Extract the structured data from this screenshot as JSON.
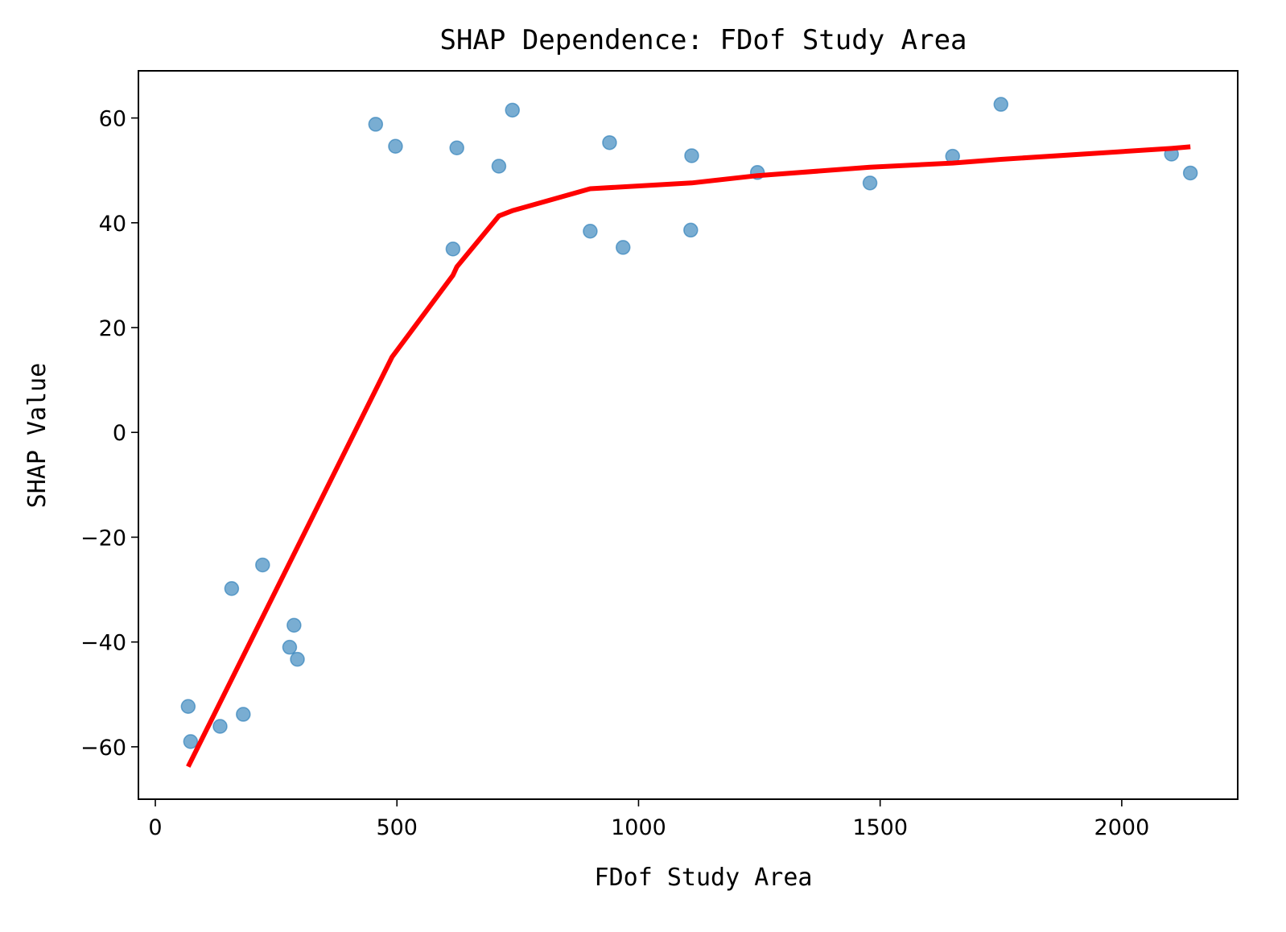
{
  "chart_data": {
    "type": "scatter",
    "title": "SHAP Dependence: FDof Study Area",
    "xlabel": "FDof Study Area",
    "ylabel": "SHAP Value",
    "xlim": [
      -35,
      2240
    ],
    "ylim": [
      -70,
      69
    ],
    "xticks": [
      0,
      500,
      1000,
      1500,
      2000
    ],
    "yticks": [
      -60,
      -40,
      -20,
      0,
      20,
      40,
      60
    ],
    "xtick_labels": [
      "0",
      "500",
      "1000",
      "1500",
      "2000"
    ],
    "ytick_labels": [
      "−60",
      "−40",
      "−20",
      "0",
      "20",
      "40",
      "60"
    ],
    "grid": false,
    "series": [
      {
        "kind": "scatter",
        "color": "#1f77b4",
        "points": [
          {
            "x": 68,
            "y": -52.3
          },
          {
            "x": 73,
            "y": -59.0
          },
          {
            "x": 134,
            "y": -56.1
          },
          {
            "x": 158,
            "y": -29.8
          },
          {
            "x": 182,
            "y": -53.8
          },
          {
            "x": 222,
            "y": -25.3
          },
          {
            "x": 278,
            "y": -41.0
          },
          {
            "x": 287,
            "y": -36.8
          },
          {
            "x": 294,
            "y": -43.3
          },
          {
            "x": 456,
            "y": 58.8
          },
          {
            "x": 497,
            "y": 54.6
          },
          {
            "x": 616,
            "y": 35.0
          },
          {
            "x": 624,
            "y": 54.3
          },
          {
            "x": 711,
            "y": 50.8
          },
          {
            "x": 739,
            "y": 61.5
          },
          {
            "x": 900,
            "y": 38.4
          },
          {
            "x": 940,
            "y": 55.3
          },
          {
            "x": 968,
            "y": 35.3
          },
          {
            "x": 1108,
            "y": 38.6
          },
          {
            "x": 1110,
            "y": 52.8
          },
          {
            "x": 1246,
            "y": 49.6
          },
          {
            "x": 1479,
            "y": 47.6
          },
          {
            "x": 1650,
            "y": 52.7
          },
          {
            "x": 1750,
            "y": 62.6
          },
          {
            "x": 2103,
            "y": 53.1
          },
          {
            "x": 2142,
            "y": 49.5
          }
        ]
      },
      {
        "kind": "line",
        "color": "#ff0000",
        "points": [
          {
            "x": 68,
            "y": -63.8
          },
          {
            "x": 490,
            "y": 14.4
          },
          {
            "x": 616,
            "y": 30.0
          },
          {
            "x": 624,
            "y": 31.6
          },
          {
            "x": 711,
            "y": 41.3
          },
          {
            "x": 739,
            "y": 42.3
          },
          {
            "x": 900,
            "y": 46.5
          },
          {
            "x": 1110,
            "y": 47.6
          },
          {
            "x": 1246,
            "y": 49.0
          },
          {
            "x": 1479,
            "y": 50.6
          },
          {
            "x": 1650,
            "y": 51.4
          },
          {
            "x": 1750,
            "y": 52.1
          },
          {
            "x": 2103,
            "y": 54.2
          },
          {
            "x": 2142,
            "y": 54.5
          }
        ]
      }
    ]
  }
}
